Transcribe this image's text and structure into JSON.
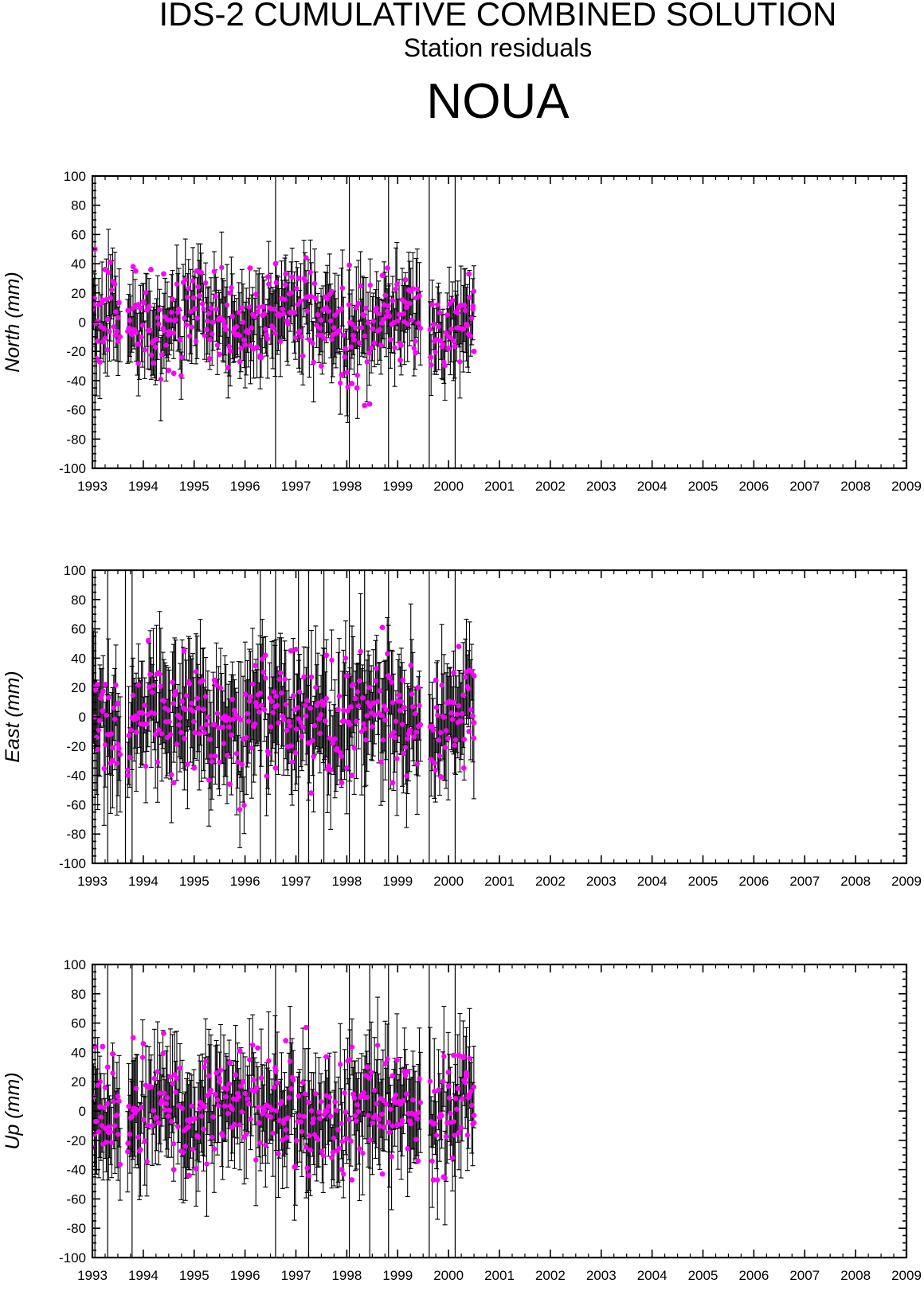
{
  "header": {
    "title": "IDS-2 CUMULATIVE COMBINED SOLUTION",
    "subtitle": "Station residuals",
    "station": "NOUA"
  },
  "colors": {
    "point": "#ff00ff",
    "errorbar": "#000000",
    "axis": "#000000"
  },
  "chart_data": [
    {
      "type": "scatter",
      "ylabel": "North (mm)",
      "xlim": [
        1993,
        2009
      ],
      "ylim": [
        -100,
        100
      ],
      "xticks": [
        "1993",
        "1994",
        "1995",
        "1996",
        "1997",
        "1998",
        "1999",
        "2000",
        "2001",
        "2002",
        "2003",
        "2004",
        "2005",
        "2006",
        "2007",
        "2008",
        "2009"
      ],
      "yticks": [
        "-100",
        "-80",
        "-60",
        "-40",
        "-20",
        "0",
        "20",
        "40",
        "60",
        "80",
        "100"
      ],
      "data_span": [
        1993.0,
        2000.5
      ],
      "spread": 14,
      "err": 22,
      "full_span_bars_x": [
        1993.05,
        1996.6,
        1998.05,
        1998.82,
        1999.62,
        2000.13
      ],
      "series": [
        {
          "points": [
            [
              1993.05,
              50
            ],
            [
              1993.1,
              -13
            ],
            [
              1993.2,
              15
            ],
            [
              1993.25,
              36
            ],
            [
              1993.3,
              2
            ],
            [
              1993.35,
              41
            ],
            [
              1993.45,
              -9
            ],
            [
              1993.5,
              3
            ],
            [
              1993.7,
              8
            ],
            [
              1993.8,
              38
            ],
            [
              1993.85,
              35
            ],
            [
              1993.9,
              12
            ],
            [
              1994.0,
              14
            ],
            [
              1994.15,
              36
            ],
            [
              1994.2,
              -28
            ],
            [
              1994.4,
              33
            ],
            [
              1994.5,
              -33
            ],
            [
              1994.6,
              -35
            ],
            [
              1995.05,
              35
            ],
            [
              1995.3,
              -25
            ],
            [
              1995.5,
              -22
            ],
            [
              1995.7,
              20
            ],
            [
              1995.9,
              -27
            ],
            [
              1996.1,
              37
            ],
            [
              1996.3,
              -23
            ],
            [
              1996.45,
              31
            ],
            [
              1996.6,
              40
            ],
            [
              1996.8,
              33
            ],
            [
              1997.05,
              30
            ],
            [
              1997.2,
              44
            ],
            [
              1997.5,
              -30
            ],
            [
              1997.7,
              21
            ],
            [
              1997.9,
              -36
            ],
            [
              1998.05,
              39
            ],
            [
              1998.1,
              -42
            ],
            [
              1998.2,
              -45
            ],
            [
              1998.35,
              -57
            ],
            [
              1998.45,
              -56
            ],
            [
              1998.7,
              32
            ],
            [
              1998.8,
              37
            ],
            [
              1999.05,
              -26
            ],
            [
              1999.15,
              29
            ],
            [
              1999.35,
              -21
            ],
            [
              1999.65,
              -24
            ],
            [
              2000.0,
              -18
            ],
            [
              2000.2,
              10
            ],
            [
              2000.4,
              33
            ],
            [
              2000.5,
              -20
            ],
            [
              2000.48,
              11
            ]
          ]
        }
      ]
    },
    {
      "type": "scatter",
      "ylabel": "East (mm)",
      "xlim": [
        1993,
        2009
      ],
      "ylim": [
        -100,
        100
      ],
      "xticks": [
        "1993",
        "1994",
        "1995",
        "1996",
        "1997",
        "1998",
        "1999",
        "2000",
        "2001",
        "2002",
        "2003",
        "2004",
        "2005",
        "2006",
        "2007",
        "2008",
        "2009"
      ],
      "yticks": [
        "-100",
        "-80",
        "-60",
        "-40",
        "-20",
        "0",
        "20",
        "40",
        "60",
        "80",
        "100"
      ],
      "data_span": [
        1993.0,
        2000.5
      ],
      "spread": 18,
      "err": 32,
      "full_span_bars_x": [
        1993.05,
        1993.3,
        1993.65,
        1993.78,
        1996.3,
        1996.6,
        1997.05,
        1997.25,
        1997.55,
        1998.05,
        1998.35,
        1998.82,
        1999.62,
        2000.13
      ],
      "series": [
        {
          "points": [
            [
              1993.1,
              22
            ],
            [
              1993.2,
              4
            ],
            [
              1993.25,
              22
            ],
            [
              1993.4,
              -30
            ],
            [
              1993.5,
              9
            ],
            [
              1993.7,
              -40
            ],
            [
              1994.1,
              52
            ],
            [
              1994.3,
              30
            ],
            [
              1994.6,
              -45
            ],
            [
              1994.8,
              45
            ],
            [
              1995.0,
              -35
            ],
            [
              1995.4,
              25
            ],
            [
              1995.7,
              -46
            ],
            [
              1996.2,
              35
            ],
            [
              1996.4,
              42
            ],
            [
              1996.6,
              -35
            ],
            [
              1996.9,
              45
            ],
            [
              1997.0,
              46
            ],
            [
              1997.3,
              -52
            ],
            [
              1997.6,
              42
            ],
            [
              1997.9,
              -45
            ],
            [
              1998.0,
              28
            ],
            [
              1998.1,
              -40
            ],
            [
              1998.7,
              61
            ],
            [
              1998.9,
              -45
            ],
            [
              1999.1,
              25
            ],
            [
              1999.4,
              20
            ],
            [
              1999.75,
              25
            ],
            [
              1999.85,
              -41
            ],
            [
              2000.1,
              30
            ],
            [
              2000.2,
              48
            ],
            [
              2000.3,
              -35
            ],
            [
              2000.4,
              -10
            ],
            [
              2000.5,
              28
            ],
            [
              2000.5,
              -4
            ]
          ]
        }
      ]
    },
    {
      "type": "scatter",
      "ylabel": "Up (mm)",
      "xlim": [
        1993,
        2009
      ],
      "ylim": [
        -100,
        100
      ],
      "xticks": [
        "1993",
        "1994",
        "1995",
        "1996",
        "1997",
        "1998",
        "1999",
        "2000",
        "2001",
        "2002",
        "2003",
        "2004",
        "2005",
        "2006",
        "2007",
        "2008",
        "2009"
      ],
      "yticks": [
        "-100",
        "-80",
        "-60",
        "-40",
        "-20",
        "0",
        "20",
        "40",
        "60",
        "80",
        "100"
      ],
      "data_span": [
        1993.0,
        2000.5
      ],
      "spread": 18,
      "err": 28,
      "full_span_bars_x": [
        1993.05,
        1993.3,
        1993.78,
        1996.6,
        1997.25,
        1998.05,
        1998.45,
        1998.82,
        1999.62,
        2000.13
      ],
      "series": [
        {
          "points": [
            [
              1993.05,
              44
            ],
            [
              1993.15,
              20
            ],
            [
              1993.2,
              44
            ],
            [
              1993.25,
              16
            ],
            [
              1993.3,
              30
            ],
            [
              1993.4,
              39
            ],
            [
              1993.5,
              10
            ],
            [
              1993.7,
              -22
            ],
            [
              1993.8,
              50
            ],
            [
              1994.0,
              46
            ],
            [
              1994.4,
              53
            ],
            [
              1994.6,
              -40
            ],
            [
              1994.9,
              -44
            ],
            [
              1995.2,
              30
            ],
            [
              1995.5,
              20
            ],
            [
              1995.7,
              33
            ],
            [
              1995.9,
              41
            ],
            [
              1996.25,
              43
            ],
            [
              1996.6,
              27
            ],
            [
              1996.8,
              48
            ],
            [
              1997.2,
              57
            ],
            [
              1997.25,
              -44
            ],
            [
              1997.6,
              37
            ],
            [
              1997.9,
              -40
            ],
            [
              1998.1,
              -47
            ],
            [
              1998.4,
              30
            ],
            [
              1998.7,
              -43
            ],
            [
              1998.9,
              24
            ],
            [
              1999.2,
              27
            ],
            [
              1999.4,
              -34
            ],
            [
              1999.7,
              -47
            ],
            [
              1999.9,
              -45
            ],
            [
              2000.0,
              17
            ],
            [
              2000.1,
              38
            ],
            [
              2000.2,
              38
            ],
            [
              2000.3,
              37
            ],
            [
              2000.35,
              24
            ],
            [
              2000.4,
              11
            ],
            [
              2000.5,
              -3
            ],
            [
              2000.5,
              -8
            ]
          ]
        }
      ]
    }
  ]
}
